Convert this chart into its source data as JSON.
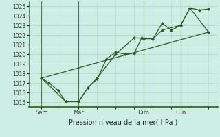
{
  "xlabel": "Pression niveau de la mer( hPa )",
  "bg_color": "#cceee4",
  "grid_color": "#b0d8c8",
  "line_color": "#2d5a27",
  "marker_color": "#2d5a27",
  "vline_color": "#4a7a44",
  "ylim": [
    1014.5,
    1025.5
  ],
  "yticks": [
    1015,
    1016,
    1017,
    1018,
    1019,
    1020,
    1021,
    1022,
    1023,
    1024,
    1025
  ],
  "day_labels": [
    "Sam",
    "Mar",
    "Dim",
    "Lun"
  ],
  "day_positions": [
    0.5,
    2.5,
    6.0,
    8.0
  ],
  "xlim": [
    -0.2,
    10.0
  ],
  "series1": {
    "x": [
      0.5,
      0.9,
      1.4,
      1.8,
      2.5,
      3.0,
      3.5,
      4.0,
      4.5,
      5.0,
      5.5,
      5.9,
      6.0,
      6.5,
      7.0,
      7.5,
      8.0,
      8.5,
      9.0,
      9.5
    ],
    "y": [
      1017.5,
      1017.0,
      1016.2,
      1015.05,
      1015.05,
      1016.5,
      1017.4,
      1019.5,
      1020.2,
      1020.0,
      1020.1,
      1021.7,
      1021.6,
      1021.6,
      1023.2,
      1022.5,
      1023.0,
      1024.8,
      1024.6,
      1024.7
    ]
  },
  "series2": {
    "x": [
      0.5,
      1.8,
      2.5,
      3.0,
      3.5,
      4.5,
      5.5,
      6.5,
      7.0,
      8.0,
      8.5,
      9.5
    ],
    "y": [
      1017.5,
      1015.05,
      1015.05,
      1016.5,
      1017.5,
      1020.0,
      1021.7,
      1021.6,
      1022.5,
      1023.0,
      1024.8,
      1022.3
    ]
  },
  "series3": {
    "x": [
      0.5,
      9.5
    ],
    "y": [
      1017.5,
      1022.3
    ]
  }
}
